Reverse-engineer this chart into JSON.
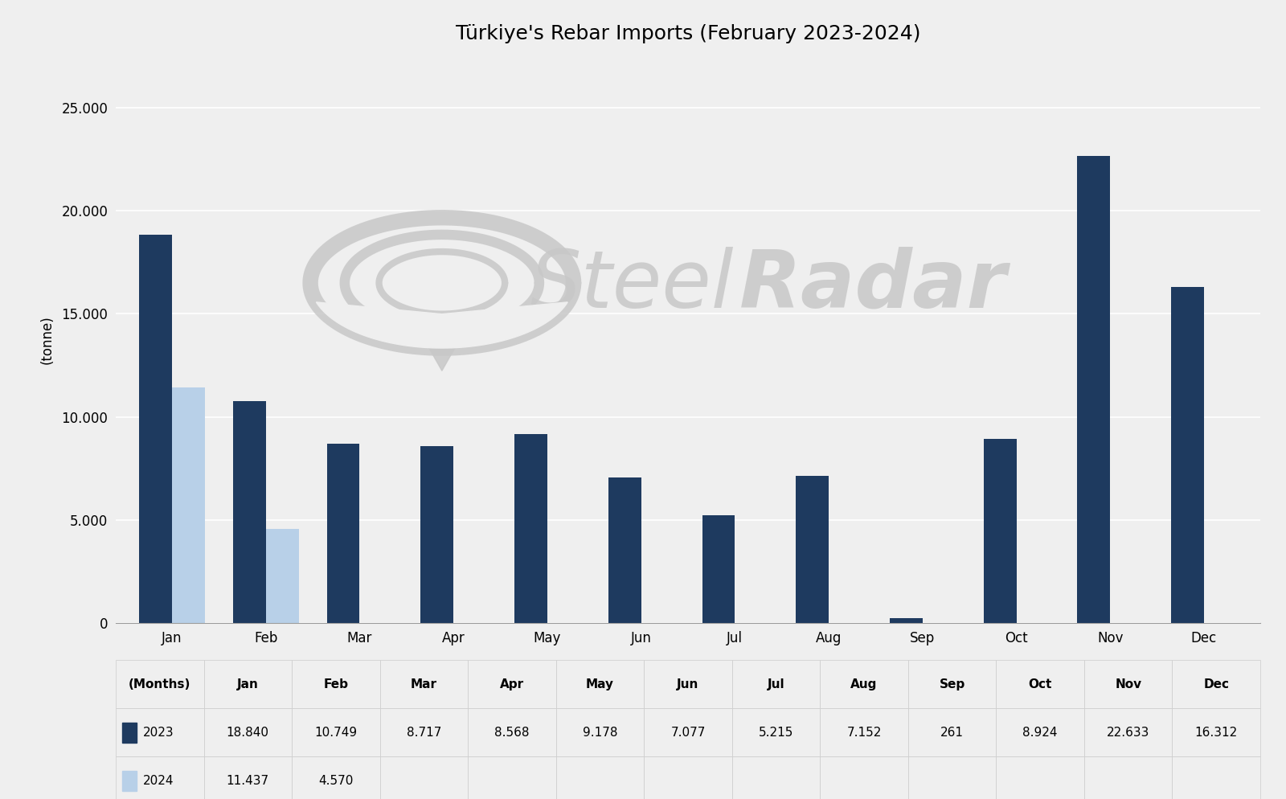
{
  "title": "Türkiye's Rebar Imports (February 2023-2024)",
  "ylabel": "(tonne)",
  "xlabel": "(Months)",
  "background_color": "#efefef",
  "months": [
    "Jan",
    "Feb",
    "Mar",
    "Apr",
    "May",
    "Jun",
    "Jul",
    "Aug",
    "Sep",
    "Oct",
    "Nov",
    "Dec"
  ],
  "data_2023": [
    18840,
    10749,
    8717,
    8568,
    9178,
    7077,
    5215,
    7152,
    261,
    8924,
    22633,
    16312
  ],
  "data_2024": [
    11437,
    4570,
    null,
    null,
    null,
    null,
    null,
    null,
    null,
    null,
    null,
    null
  ],
  "color_2023": "#1e3a5f",
  "color_2024": "#b8d0e8",
  "ylim": [
    0,
    27500
  ],
  "yticks": [
    0,
    5000,
    10000,
    15000,
    20000,
    25000
  ],
  "bar_width": 0.35,
  "legend_2023": "2023",
  "legend_2024": "2024",
  "table_row_2023": [
    "18.840",
    "10.749",
    "8.717",
    "8.568",
    "9.178",
    "7.077",
    "5.215",
    "7.152",
    "261",
    "8.924",
    "22.633",
    "16.312"
  ],
  "table_row_2024": [
    "11.437",
    "4.570",
    "",
    "",
    "",
    "",
    "",
    "",
    "",
    "",
    "",
    ""
  ],
  "watermark_color": "#c8c8c8",
  "watermark_text_light": "Steel",
  "watermark_text_bold": "Radar",
  "title_fontsize": 18,
  "axis_fontsize": 12,
  "tick_fontsize": 12,
  "table_fontsize": 11
}
